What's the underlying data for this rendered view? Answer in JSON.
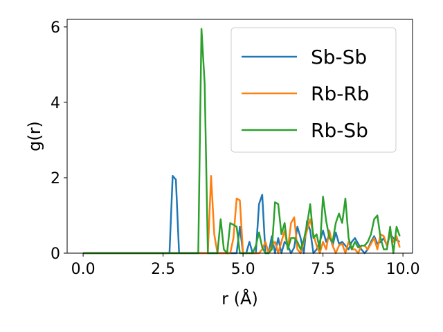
{
  "chart_data": {
    "type": "line",
    "title": "",
    "xlabel": "r (Å)",
    "ylabel": "g(r)",
    "xlim": [
      -0.5,
      10.3
    ],
    "ylim": [
      0,
      6.2
    ],
    "xticks": [
      0.0,
      2.5,
      5.0,
      7.5,
      10.0
    ],
    "xtick_labels": [
      "0.0",
      "2.5",
      "5.0",
      "7.5",
      "10.0"
    ],
    "yticks": [
      0,
      2,
      4,
      6
    ],
    "ytick_labels": [
      "0",
      "2",
      "4",
      "6"
    ],
    "grid": false,
    "legend_position": "top-right",
    "series": [
      {
        "name": "Sb-Sb",
        "color": "#1f77b4",
        "x": [
          0.0,
          2.7,
          2.8,
          2.9,
          3.0,
          4.8,
          4.9,
          5.0,
          5.1,
          5.2,
          5.3,
          5.4,
          5.5,
          5.6,
          5.7,
          5.8,
          5.9,
          6.0,
          6.1,
          6.2,
          6.3,
          6.4,
          6.5,
          6.6,
          6.7,
          6.8,
          6.9,
          7.0,
          7.1,
          7.2,
          7.3,
          7.4,
          7.5,
          7.6,
          7.7,
          7.8,
          7.9,
          8.0,
          8.1,
          8.2,
          8.3,
          8.4,
          8.5,
          8.6,
          8.7,
          8.8,
          8.9,
          9.0,
          9.1,
          9.2,
          9.3,
          9.4,
          9.5,
          9.6,
          9.7,
          9.8,
          9.9
        ],
        "y": [
          0,
          0,
          2.05,
          1.95,
          0,
          0,
          0.7,
          0,
          0,
          0.3,
          0,
          0,
          1.3,
          1.55,
          0,
          0,
          0.45,
          0,
          0.4,
          0,
          0.3,
          0.2,
          0,
          0.15,
          0.7,
          0.4,
          0,
          0.85,
          0.6,
          0,
          0.1,
          0.3,
          0.6,
          0.3,
          0.5,
          0.2,
          0.55,
          0.25,
          0.3,
          0.2,
          0.1,
          0.3,
          0.4,
          0.25,
          0.1,
          0,
          0.1,
          0.3,
          0.45,
          0.25,
          0.3,
          0.4,
          0.2,
          0.5,
          0.4,
          0.35,
          0.3
        ]
      },
      {
        "name": "Rb-Rb",
        "color": "#ff7f0e",
        "x": [
          0.0,
          3.9,
          4.0,
          4.1,
          4.2,
          4.6,
          4.7,
          4.8,
          4.9,
          5.0,
          5.5,
          5.6,
          5.7,
          5.8,
          5.9,
          6.0,
          6.1,
          6.2,
          6.3,
          6.4,
          6.5,
          6.6,
          6.7,
          6.8,
          6.9,
          7.0,
          7.1,
          7.2,
          7.3,
          7.4,
          7.5,
          7.6,
          7.7,
          7.8,
          7.9,
          8.0,
          8.1,
          8.2,
          8.3,
          8.4,
          8.5,
          8.6,
          8.7,
          8.8,
          8.9,
          9.0,
          9.1,
          9.2,
          9.3,
          9.4,
          9.5,
          9.6,
          9.7,
          9.8,
          9.9
        ],
        "y": [
          0,
          0,
          2.05,
          0.5,
          0,
          0,
          0.4,
          1.45,
          1.4,
          0,
          0,
          0.1,
          0.3,
          0,
          0.2,
          0.3,
          0,
          0.3,
          0.6,
          0.1,
          0.8,
          0.95,
          0.1,
          0,
          0.3,
          0.6,
          0.9,
          0.5,
          0.2,
          0,
          0.3,
          0.1,
          0.6,
          0.2,
          0,
          0.2,
          0.25,
          0,
          0.3,
          0.1,
          0.1,
          0,
          0.2,
          0.2,
          0.1,
          0.25,
          0.4,
          0.1,
          0.5,
          0.45,
          0.2,
          0.55,
          0.3,
          0.45,
          0.15
        ]
      },
      {
        "name": "Rb-Sb",
        "color": "#2ca02c",
        "x": [
          0.0,
          3.6,
          3.7,
          3.8,
          3.9,
          4.2,
          4.3,
          4.4,
          4.5,
          4.6,
          4.7,
          4.8,
          4.9,
          5.0,
          5.1,
          5.2,
          5.3,
          5.4,
          5.5,
          5.6,
          5.7,
          5.8,
          5.9,
          6.0,
          6.1,
          6.2,
          6.3,
          6.4,
          6.5,
          6.6,
          6.7,
          6.8,
          6.9,
          7.0,
          7.1,
          7.2,
          7.3,
          7.4,
          7.5,
          7.6,
          7.7,
          7.8,
          7.9,
          8.0,
          8.1,
          8.2,
          8.3,
          8.4,
          8.5,
          8.6,
          8.7,
          8.8,
          8.9,
          9.0,
          9.1,
          9.2,
          9.3,
          9.4,
          9.5,
          9.6,
          9.7,
          9.8,
          9.9
        ],
        "y": [
          0,
          0,
          5.95,
          4.5,
          0,
          0,
          0.9,
          0.1,
          0,
          0.8,
          0.75,
          0.7,
          0,
          0,
          0,
          0,
          0,
          0.2,
          0.55,
          0.15,
          0,
          0,
          0.1,
          1.35,
          1.3,
          0.5,
          0.8,
          0.1,
          0.4,
          0.4,
          0.3,
          0.1,
          0.35,
          0.75,
          1.3,
          0.4,
          0.5,
          0.1,
          1.5,
          0.85,
          0.4,
          0.3,
          0.8,
          1.05,
          0.8,
          1.45,
          0.4,
          0.1,
          0.3,
          0.15,
          0.2,
          0.2,
          0.3,
          0.5,
          0.9,
          1.0,
          0.4,
          0.1,
          0.1,
          0.7,
          0,
          0.7,
          0.45
        ]
      }
    ]
  }
}
